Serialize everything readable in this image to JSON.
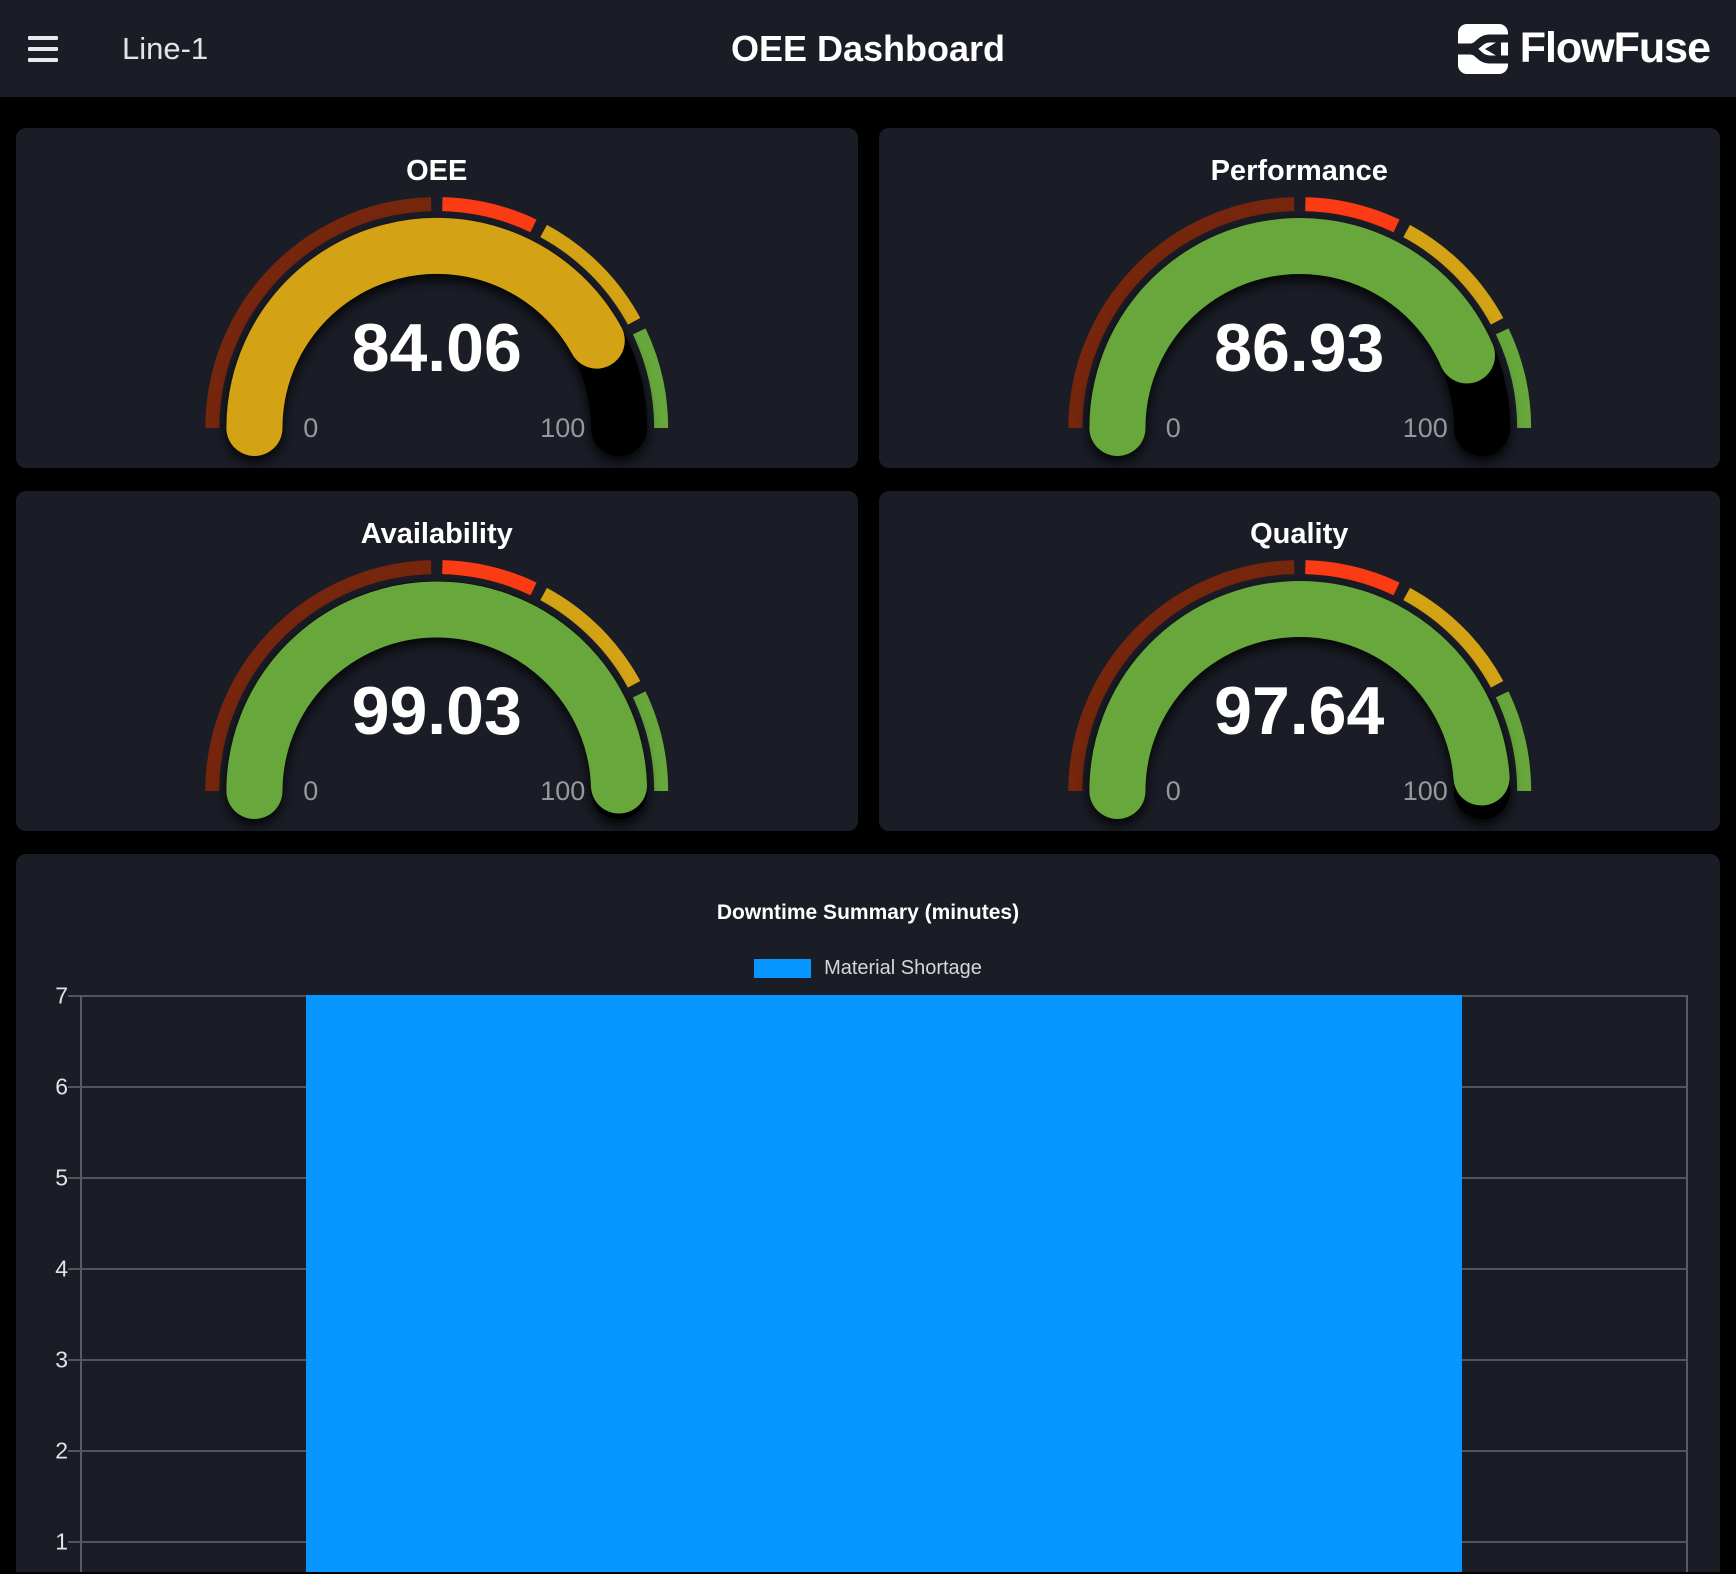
{
  "app_bar": {
    "page_name": "Line-1",
    "title": "OEE Dashboard",
    "brand_name": "FlowFuse"
  },
  "gauges": [
    {
      "title": "OEE",
      "value": 84.06
    },
    {
      "title": "Performance",
      "value": 86.93
    },
    {
      "title": "Availability",
      "value": 99.03
    },
    {
      "title": "Quality",
      "value": 97.64
    }
  ],
  "gauge_scale": {
    "min_label": "0",
    "max_label": "100",
    "track_color": "#000000",
    "segments": [
      {
        "from": 0,
        "to": 50,
        "color": "#77260e"
      },
      {
        "from": 50,
        "to": 65,
        "color": "#fb3b14"
      },
      {
        "from": 65,
        "to": 85,
        "color": "#d3a315"
      },
      {
        "from": 85,
        "to": 100,
        "color": "#67a73c"
      }
    ]
  },
  "chart_data": {
    "type": "bar",
    "title": "Downtime Summary (minutes)",
    "categories": [
      ""
    ],
    "series": [
      {
        "name": "Material Shortage",
        "color": "#0795ff",
        "values": [
          7
        ]
      }
    ],
    "ylim": [
      0,
      7
    ],
    "yticks": [
      7,
      6,
      5,
      4,
      3,
      2,
      1
    ],
    "grid": true,
    "legend_position": "top"
  }
}
